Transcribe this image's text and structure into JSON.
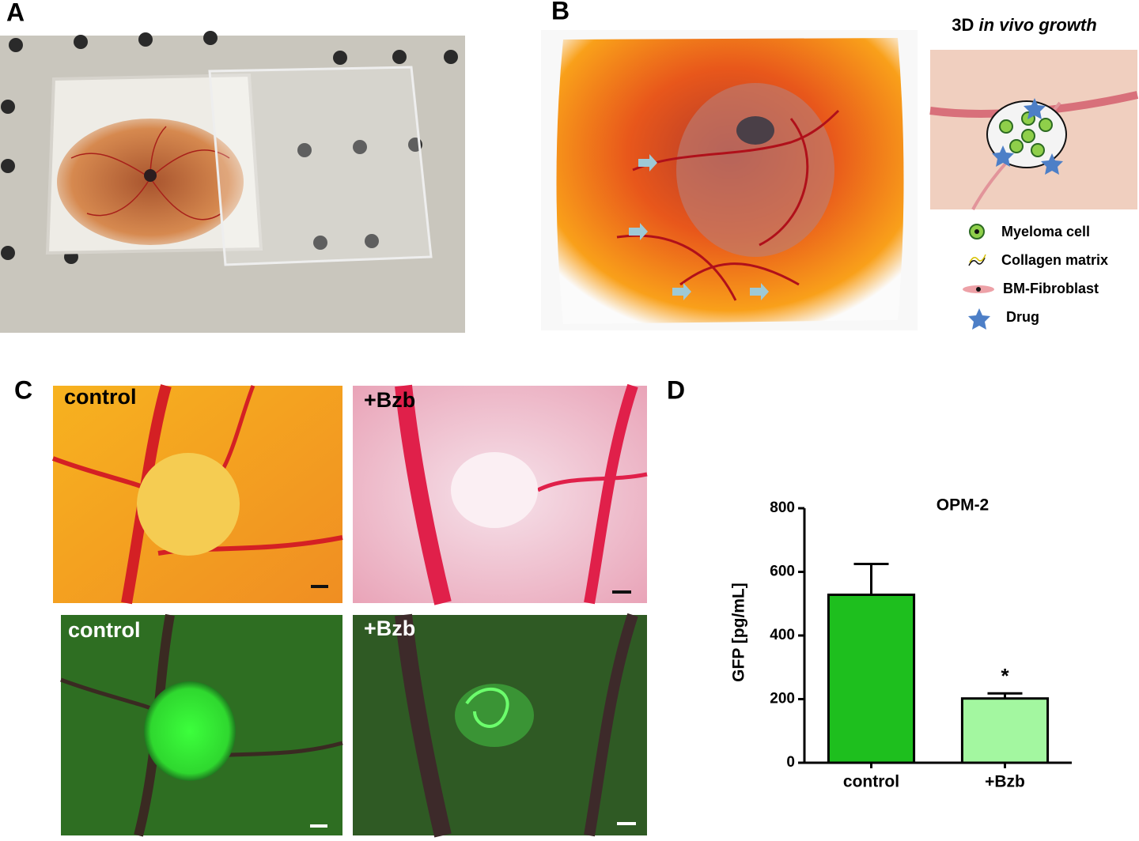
{
  "panels": {
    "a": {
      "label": "A"
    },
    "b": {
      "label": "B",
      "inset_title": {
        "prefix": "3D",
        "italic": "in vivo",
        "suffix": "growth"
      },
      "legend": [
        "Myeloma cell",
        "Collagen matrix",
        "BM-Fibroblast",
        "Drug"
      ]
    },
    "c": {
      "label": "C",
      "images": [
        "control",
        "+Bzb",
        "control",
        "+Bzb"
      ]
    },
    "d": {
      "label": "D"
    }
  },
  "chart_data": {
    "type": "bar",
    "title": "OPM-2",
    "y_label": "GFP [pg/mL]",
    "categories": [
      "control",
      "+Bzb"
    ],
    "values": [
      528,
      202
    ],
    "errors": [
      97,
      16
    ],
    "significance": [
      null,
      "*"
    ],
    "colors": [
      "#1ebf1e",
      "#a3f7a0"
    ],
    "ylim": [
      0,
      800
    ],
    "yticks": [
      0,
      200,
      400,
      600,
      800
    ]
  }
}
